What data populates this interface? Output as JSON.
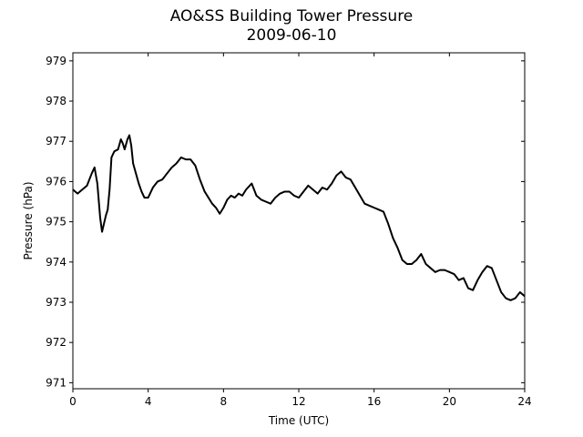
{
  "chart_data": {
    "type": "line",
    "title": "AO&SS Building Tower Pressure",
    "subtitle": "2009-06-10",
    "xlabel": "Time (UTC)",
    "ylabel": "Pressure (hPa)",
    "xlim": [
      0,
      24
    ],
    "ylim": [
      970.85,
      979.2
    ],
    "xticks": [
      0,
      4,
      8,
      12,
      16,
      20,
      24
    ],
    "yticks": [
      971,
      972,
      973,
      974,
      975,
      976,
      977,
      978,
      979
    ],
    "grid": false,
    "line_color": "#000000",
    "series": [
      {
        "x": [
          0,
          0.25,
          0.5,
          0.75,
          1.0,
          1.15,
          1.3,
          1.45,
          1.55,
          1.65,
          1.75,
          1.85,
          1.95,
          2.05,
          2.2,
          2.4,
          2.55,
          2.65,
          2.75,
          2.9,
          3.0,
          3.1,
          3.2,
          3.35,
          3.5,
          3.65,
          3.8,
          4.0,
          4.25,
          4.5,
          4.75,
          5.0,
          5.25,
          5.5,
          5.75,
          6.0,
          6.25,
          6.5,
          6.75,
          7.0,
          7.2,
          7.4,
          7.6,
          7.8,
          8.0,
          8.2,
          8.4,
          8.6,
          8.8,
          9.0,
          9.2,
          9.5,
          9.75,
          10.0,
          10.25,
          10.5,
          10.75,
          11.0,
          11.25,
          11.5,
          11.75,
          12.0,
          12.25,
          12.5,
          12.75,
          13.0,
          13.25,
          13.5,
          13.75,
          14.0,
          14.25,
          14.5,
          14.75,
          15.0,
          15.25,
          15.5,
          15.75,
          16.0,
          16.25,
          16.5,
          16.75,
          17.0,
          17.25,
          17.5,
          17.75,
          18.0,
          18.25,
          18.5,
          18.75,
          19.0,
          19.25,
          19.5,
          19.75,
          20.0,
          20.25,
          20.5,
          20.75,
          21.0,
          21.25,
          21.5,
          21.75,
          22.0,
          22.25,
          22.5,
          22.75,
          23.0,
          23.25,
          23.5,
          23.75,
          24.0
        ],
        "y": [
          975.8,
          975.7,
          975.8,
          975.9,
          976.2,
          976.35,
          975.95,
          975.1,
          974.75,
          974.95,
          975.15,
          975.3,
          975.8,
          976.6,
          976.75,
          976.8,
          977.05,
          976.95,
          976.8,
          977.05,
          977.15,
          976.9,
          976.45,
          976.2,
          975.95,
          975.75,
          975.6,
          975.6,
          975.85,
          976.0,
          976.05,
          976.2,
          976.35,
          976.45,
          976.6,
          976.55,
          976.55,
          976.4,
          976.05,
          975.75,
          975.6,
          975.45,
          975.35,
          975.2,
          975.35,
          975.55,
          975.65,
          975.6,
          975.7,
          975.65,
          975.8,
          975.95,
          975.65,
          975.55,
          975.5,
          975.45,
          975.6,
          975.7,
          975.75,
          975.75,
          975.65,
          975.6,
          975.75,
          975.9,
          975.8,
          975.7,
          975.85,
          975.8,
          975.95,
          976.15,
          976.25,
          976.1,
          976.05,
          975.85,
          975.65,
          975.45,
          975.4,
          975.35,
          975.3,
          975.25,
          974.95,
          974.6,
          974.35,
          974.05,
          973.95,
          973.95,
          974.05,
          974.2,
          973.95,
          973.85,
          973.75,
          973.8,
          973.8,
          973.75,
          973.7,
          973.55,
          973.6,
          973.35,
          973.3,
          973.55,
          973.75,
          973.9,
          973.85,
          973.55,
          973.25,
          973.1,
          973.05,
          973.1,
          973.25,
          973.15
        ]
      }
    ]
  }
}
